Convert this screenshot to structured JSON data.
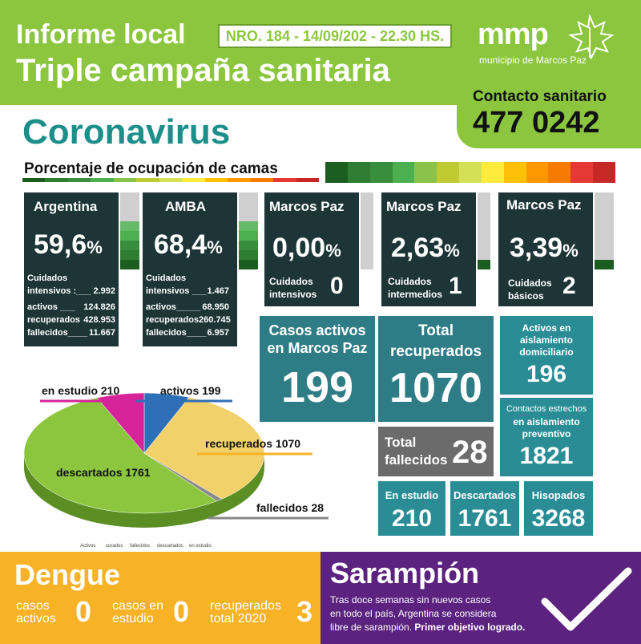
{
  "header": {
    "title_line1": "Informe local",
    "title_line2": "Triple campaña sanitaria",
    "report_number": "NRO. 184 - 14/09/202 - 22.30 HS."
  },
  "logo": {
    "brand": "mmp",
    "subtitle": "municipio de Marcos Paz"
  },
  "contact": {
    "label": "Contacto sanitario",
    "phone": "477 0242"
  },
  "section": {
    "title": "Coronavirus",
    "bar_label": "Porcentaje de ocupación de camas",
    "scale_colors": [
      "#1b5e20",
      "#2e7d32",
      "#388e3c",
      "#4caf50",
      "#8bc34a",
      "#c0ca33",
      "#d4e157",
      "#ffeb3b",
      "#ffc107",
      "#ff9800",
      "#f57c00",
      "#e53935",
      "#c62828"
    ]
  },
  "occupancy": [
    {
      "region": "Argentina",
      "percent": "59,6",
      "lines": [
        [
          "Cuidados",
          ""
        ],
        [
          "intensivos :___",
          "2.992"
        ],
        [
          "activos ___",
          "124.826"
        ],
        [
          "recuperados",
          "428.953"
        ],
        [
          "fallecidos____",
          "11.667"
        ]
      ],
      "level": 0.6
    },
    {
      "region": "AMBA",
      "percent": "68,4",
      "lines": [
        [
          "Cuidados",
          ""
        ],
        [
          "intensivos ___",
          "1.467"
        ],
        [
          "activos_____",
          "68.950"
        ],
        [
          "recuperados",
          "260.745"
        ],
        [
          "fallecidos____",
          "6.957"
        ]
      ],
      "level": 0.68
    },
    {
      "region": "Marcos Paz",
      "percent": "0,00",
      "care": [
        "Cuidados",
        "intensivos"
      ],
      "count": "0",
      "level": 0.0
    },
    {
      "region": "Marcos Paz",
      "percent": "2,63",
      "care": [
        "Cuidados",
        "intermedios"
      ],
      "count": "1",
      "level": 0.03
    },
    {
      "region": "Marcos Paz",
      "percent": "3,39",
      "care": [
        "Cuidados",
        "básicos"
      ],
      "count": "2",
      "level": 0.04
    }
  ],
  "percent_sign": "%",
  "stats": {
    "activos": {
      "label1": "Casos activos",
      "label2": "en Marcos Paz",
      "value": "199"
    },
    "recuperados": {
      "label1": "Total",
      "label2": "recuperados",
      "value": "1070"
    },
    "aislamiento": {
      "label1": "Activos en",
      "label2": "aislamiento",
      "label3": "domiciliario",
      "value": "196"
    },
    "contactos": {
      "label1": "Contactos estrechos",
      "label2": "en aislamiento",
      "label3": "preventivo",
      "value": "1821"
    },
    "fallecidos": {
      "label1": "Total",
      "label2": "fallecidos",
      "value": "28"
    },
    "estudio": {
      "label": "En estudio",
      "value": "210"
    },
    "descartados": {
      "label": "Descartados",
      "value": "1761"
    },
    "hisopados": {
      "label": "Hisopados",
      "value": "3268"
    }
  },
  "chart_data": {
    "type": "pie",
    "categories": [
      "activos",
      "recuperados",
      "fallecidos",
      "descartados",
      "en estudio"
    ],
    "values": [
      199,
      1070,
      28,
      1761,
      210
    ],
    "labels": [
      "en estudio 210",
      "activos 199",
      "recuperados 1070",
      "descartados 1761",
      "fallecidos 28"
    ],
    "legend": [
      "Activos",
      "curados",
      "fallecidos",
      "descartados",
      "en estudio"
    ],
    "colors": [
      "#2e6fb7",
      "#f2d16b",
      "#8a8a8a",
      "#8cc63f",
      "#d6239a"
    ]
  },
  "dengue": {
    "title": "Dengue",
    "items": [
      {
        "l1": "casos",
        "l2": "activos",
        "v": "0"
      },
      {
        "l1": "casos en",
        "l2": "estudio",
        "v": "0"
      },
      {
        "l1": "recuperados",
        "l2": "total 2020",
        "v": "3"
      }
    ]
  },
  "sarampion": {
    "title": "Sarampión",
    "text1": "Tras doce semanas sin nuevos casos",
    "text2": "en todo el país, Argentina se considera",
    "text3": "libre de sarampión.",
    "text4": "Primer objetivo logrado."
  }
}
